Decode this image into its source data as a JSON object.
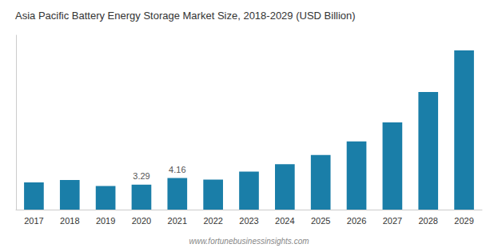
{
  "chart_data": {
    "type": "bar",
    "title": "Asia Pacific Battery Energy Storage Market Size, 2018-2029 (USD Billion)",
    "annotations": [
      "www.fortunebusinessinsights.com"
    ],
    "categories": [
      "2017",
      "2018",
      "2019",
      "2020",
      "2021",
      "2022",
      "2023",
      "2024",
      "2025",
      "2026",
      "2027",
      "2028",
      "2029"
    ],
    "values": [
      3.6,
      3.9,
      3.1,
      3.29,
      4.16,
      3.95,
      5.0,
      6.0,
      7.2,
      9.0,
      11.5,
      15.5,
      21.0
    ],
    "value_labels": [
      null,
      null,
      null,
      "3.29",
      "4.16",
      null,
      null,
      null,
      null,
      null,
      null,
      null,
      null
    ],
    "color": "#1a7ea8",
    "ylim": [
      0,
      23
    ],
    "grid": false,
    "tick_labels": "x"
  }
}
